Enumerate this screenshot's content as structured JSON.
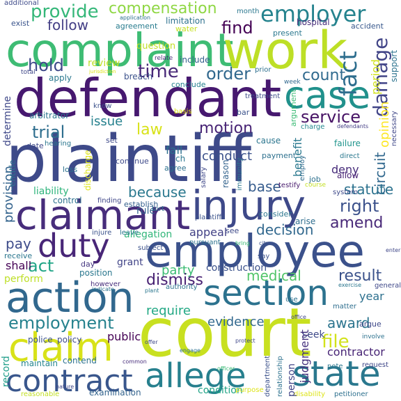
{
  "words": [
    {
      "text": "plaintiff",
      "color": "#3e4a89",
      "rot": 0
    },
    {
      "text": "court",
      "color": "#c8e020",
      "rot": 0
    },
    {
      "text": "employee",
      "color": "#3b518b",
      "rot": 0
    },
    {
      "text": "defendant",
      "color": "#46186f",
      "rot": 0
    },
    {
      "text": "complaint",
      "color": "#3ebc74",
      "rot": 0
    },
    {
      "text": "work",
      "color": "#bddf26",
      "rot": 0
    },
    {
      "text": "claimant",
      "color": "#472d7b",
      "rot": 0
    },
    {
      "text": "injury",
      "color": "#3e4989",
      "rot": 0
    },
    {
      "text": "action",
      "color": "#31688e",
      "rot": 0
    },
    {
      "text": "section",
      "color": "#2c728e",
      "rot": 0
    },
    {
      "text": "claim",
      "color": "#d8e219",
      "rot": 0
    },
    {
      "text": "state",
      "color": "#2a788e",
      "rot": 0
    },
    {
      "text": "contract",
      "color": "#39568c",
      "rot": 0
    },
    {
      "text": "allege",
      "color": "#27808e",
      "rot": 0
    },
    {
      "text": "case",
      "color": "#21918c",
      "rot": 0
    },
    {
      "text": "duty",
      "color": "#482677",
      "rot": 0
    },
    {
      "text": "employer",
      "color": "#25838e",
      "rot": 0
    },
    {
      "text": "fact",
      "color": "#2e6e8e",
      "rot": -90
    },
    {
      "text": "damage",
      "color": "#414487",
      "rot": -90
    },
    {
      "text": "provide",
      "color": "#35b779",
      "rot": 0
    },
    {
      "text": "compensation",
      "color": "#8fd744",
      "rot": 0
    },
    {
      "text": "follow",
      "color": "#433e85",
      "rot": 0
    },
    {
      "text": "find",
      "color": "#440154",
      "rot": 0
    },
    {
      "text": "hold",
      "color": "#3e4989",
      "rot": 0
    },
    {
      "text": "time",
      "color": "#482878",
      "rot": 0
    },
    {
      "text": "review",
      "color": "#bddf26",
      "rot": 0
    },
    {
      "text": "order",
      "color": "#31688e",
      "rot": 0
    },
    {
      "text": "count",
      "color": "#306a8e",
      "rot": 0
    },
    {
      "text": "period",
      "color": "#d0e11c",
      "rot": -90
    },
    {
      "text": "opinion",
      "color": "#fde725",
      "rot": -90
    },
    {
      "text": "law",
      "color": "#d8e219",
      "rot": 0
    },
    {
      "text": "trial",
      "color": "#2e6e8e",
      "rot": 0
    },
    {
      "text": "issue",
      "color": "#26818e",
      "rot": 0
    },
    {
      "text": "motion",
      "color": "#482475",
      "rot": 0
    },
    {
      "text": "service",
      "color": "#471365",
      "rot": 0
    },
    {
      "text": "circuit",
      "color": "#31688e",
      "rot": -90
    },
    {
      "text": "because",
      "color": "#2a788e",
      "rot": 0
    },
    {
      "text": "right",
      "color": "#3b518b",
      "rot": 0
    },
    {
      "text": "amend",
      "color": "#482878",
      "rot": 0
    },
    {
      "text": "decision",
      "color": "#31688e",
      "rot": 0
    },
    {
      "text": "liability",
      "color": "#2fb47c",
      "rot": 0
    },
    {
      "text": "statute",
      "color": "#2c728e",
      "rot": 0
    },
    {
      "text": "base",
      "color": "#365c8d",
      "rot": 0
    },
    {
      "text": "benefit",
      "color": "#2a788e",
      "rot": -90
    },
    {
      "text": "provision",
      "color": "#33638d",
      "rot": -90
    },
    {
      "text": "determine",
      "color": "#3f4889",
      "rot": -90
    },
    {
      "text": "pay",
      "color": "#3e4c8a",
      "rot": 0
    },
    {
      "text": "act",
      "color": "#20a486",
      "rot": 0
    },
    {
      "text": "shall",
      "color": "#440154",
      "rot": 0
    },
    {
      "text": "perform",
      "color": "#bddf26",
      "rot": 0
    },
    {
      "text": "appeal",
      "color": "#424186",
      "rot": 0
    },
    {
      "text": "medical",
      "color": "#52c569",
      "rot": 0
    },
    {
      "text": "result",
      "color": "#3b528b",
      "rot": 0
    },
    {
      "text": "party",
      "color": "#3dbc74",
      "rot": 0
    },
    {
      "text": "dismiss",
      "color": "#482173",
      "rot": 0
    },
    {
      "text": "employment",
      "color": "#26828e",
      "rot": 0
    },
    {
      "text": "require",
      "color": "#22a884",
      "rot": 0
    },
    {
      "text": "evidence",
      "color": "#31688e",
      "rot": 0
    },
    {
      "text": "award",
      "color": "#2b748e",
      "rot": 0
    },
    {
      "text": "file",
      "color": "#d2e21b",
      "rot": 0
    },
    {
      "text": "seek",
      "color": "#3e4989",
      "rot": 0
    },
    {
      "text": "judgment",
      "color": "#46327e",
      "rot": -90
    },
    {
      "text": "contractor",
      "color": "#482576",
      "rot": 0
    },
    {
      "text": "record",
      "color": "#1f9e89",
      "rot": -90
    },
    {
      "text": "conduct",
      "color": "#3b518b",
      "rot": 0
    },
    {
      "text": "public",
      "color": "#440154",
      "rot": 0
    },
    {
      "text": "construction",
      "color": "#3b518b",
      "rot": 0
    },
    {
      "text": "condition",
      "color": "#20a386",
      "rot": 0
    },
    {
      "text": "maintain",
      "color": "#25848e",
      "rot": 0
    },
    {
      "text": "contend",
      "color": "#2c718e",
      "rot": 0
    },
    {
      "text": "examination",
      "color": "#33638d",
      "rot": 0
    },
    {
      "text": "fail",
      "color": "#2d708e",
      "rot": 0
    },
    {
      "text": "rule",
      "color": "#33638d",
      "rot": 0
    },
    {
      "text": "deny",
      "color": "#472c7a",
      "rot": 0
    },
    {
      "text": "year",
      "color": "#2d708e",
      "rot": 0
    },
    {
      "text": "position",
      "color": "#2a778e",
      "rot": 0
    },
    {
      "text": "allegation",
      "color": "#32b67a",
      "rot": 0
    },
    {
      "text": "grant",
      "color": "#414487",
      "rot": 0
    },
    {
      "text": "question",
      "color": "#c2df23",
      "rot": 0
    },
    {
      "text": "include",
      "color": "#34608d",
      "rot": 0
    },
    {
      "text": "breach",
      "color": "#3b518b",
      "rot": 0
    },
    {
      "text": "apply",
      "color": "#2a788e",
      "rot": 0
    },
    {
      "text": "arise",
      "color": "#2e6d8e",
      "rot": 0
    },
    {
      "text": "consider",
      "color": "#2a768e",
      "rot": 0
    },
    {
      "text": "establish",
      "color": "#34608d",
      "rot": 0
    },
    {
      "text": "agreement",
      "color": "#287c8e",
      "rot": 0
    },
    {
      "text": "limitation",
      "color": "#2d718e",
      "rot": 0
    },
    {
      "text": "hospital",
      "color": "#472c7a",
      "rot": 0
    },
    {
      "text": "accident",
      "color": "#38588c",
      "rot": 0
    },
    {
      "text": "present",
      "color": "#2a778e",
      "rot": 0
    },
    {
      "text": "exist",
      "color": "#3a548c",
      "rot": 0
    },
    {
      "text": "water",
      "color": "#c5e021",
      "rot": 0
    },
    {
      "text": "additional",
      "color": "#3e4a89",
      "rot": 0
    },
    {
      "text": "month",
      "color": "#2a778e",
      "rot": 0
    },
    {
      "text": "application",
      "color": "#2c718e",
      "rot": 0
    },
    {
      "text": "conclude",
      "color": "#26828e",
      "rot": 0
    },
    {
      "text": "relate",
      "color": "#472d7b",
      "rot": 0
    },
    {
      "text": "jurisdiction",
      "color": "#dde318",
      "rot": 0
    },
    {
      "text": "prior",
      "color": "#2d708e",
      "rot": 0
    },
    {
      "text": "week",
      "color": "#31688e",
      "rot": 0
    },
    {
      "text": "support",
      "color": "#2c738e",
      "rot": -90
    },
    {
      "text": "argument",
      "color": "#3bbb75",
      "rot": -90
    },
    {
      "text": "necessary",
      "color": "#3f4788",
      "rot": -90
    },
    {
      "text": "treatment",
      "color": "#3e4c8a",
      "rot": 0
    },
    {
      "text": "bar",
      "color": "#3b528b",
      "rot": 0
    },
    {
      "text": "charge",
      "color": "#23888e",
      "rot": 0
    },
    {
      "text": "defendants",
      "color": "#433d84",
      "rot": 0
    },
    {
      "text": "cause",
      "color": "#2b758e",
      "rot": 0
    },
    {
      "text": "failure",
      "color": "#1f948c",
      "rot": 0
    },
    {
      "text": "basis",
      "color": "#dde318",
      "rot": 0
    },
    {
      "text": "salary",
      "color": "#3f4889",
      "rot": -90
    },
    {
      "text": "reason",
      "color": "#33638d",
      "rot": -90
    },
    {
      "text": "immunity",
      "color": "#2a778e",
      "rot": -90
    },
    {
      "text": "payment",
      "color": "#2d708e",
      "rot": 0
    },
    {
      "text": "employ",
      "color": "#2f6c8e",
      "rot": -90
    },
    {
      "text": "direct",
      "color": "#2a788e",
      "rot": 0
    },
    {
      "text": "allow",
      "color": "#482374",
      "rot": 0
    },
    {
      "text": "job",
      "color": "#2d708e",
      "rot": 0
    },
    {
      "text": "testify",
      "color": "#481b6d",
      "rot": 0
    },
    {
      "text": "course",
      "color": "#c2df23",
      "rot": 0
    },
    {
      "text": "system",
      "color": "#3e4989",
      "rot": 0
    },
    {
      "text": "control",
      "color": "#2c718e",
      "rot": 0
    },
    {
      "text": "finding",
      "color": "#3f4788",
      "rot": 0
    },
    {
      "text": "plaintiffs",
      "color": "#3b528b",
      "rot": 0
    },
    {
      "text": "pursuant",
      "color": "#2c728e",
      "rot": 0
    },
    {
      "text": "injure",
      "color": "#3b528b",
      "rot": 0
    },
    {
      "text": "leave",
      "color": "#2a768e",
      "rot": 0
    },
    {
      "text": "subject",
      "color": "#3b518b",
      "rot": 0
    },
    {
      "text": "receive",
      "color": "#2a768e",
      "rot": 0
    },
    {
      "text": "day",
      "color": "#453781",
      "rot": 0
    },
    {
      "text": "authority",
      "color": "#2c718e",
      "rot": 0
    },
    {
      "text": "say",
      "color": "#3b518b",
      "rot": 0
    },
    {
      "text": "general",
      "color": "#3f4889",
      "rot": 0
    },
    {
      "text": "exercise",
      "color": "#2a768e",
      "rot": 0
    },
    {
      "text": "matter",
      "color": "#2e6e8e",
      "rot": 0
    },
    {
      "text": "argue",
      "color": "#3e4989",
      "rot": 0
    },
    {
      "text": "involve",
      "color": "#2c718e",
      "rot": 0
    },
    {
      "text": "police",
      "color": "#3b528b",
      "rot": 0
    },
    {
      "text": "policy",
      "color": "#3e4c8a",
      "rot": 0
    },
    {
      "text": "however",
      "color": "#472d7b",
      "rot": 0
    },
    {
      "text": "indicate",
      "color": "#2c718e",
      "rot": 0
    },
    {
      "text": "note",
      "color": "#2a768e",
      "rot": 0
    },
    {
      "text": "request",
      "color": "#3f4788",
      "rot": 0
    },
    {
      "text": "petitioner",
      "color": "#2d708e",
      "rot": 0
    },
    {
      "text": "reasonable",
      "color": "#c2df23",
      "rot": 0
    },
    {
      "text": "purpose",
      "color": "#dde318",
      "rot": 0
    },
    {
      "text": "disability",
      "color": "#dde318",
      "rot": 0
    },
    {
      "text": "relationship",
      "color": "#2c718e",
      "rot": -90
    },
    {
      "text": "department",
      "color": "#3b518b",
      "rot": -90
    },
    {
      "text": "person",
      "color": "#414487",
      "rot": -90
    },
    {
      "text": "entitle",
      "color": "#2c718e",
      "rot": -90
    },
    {
      "text": "discharge",
      "color": "#dde318",
      "rot": -90
    },
    {
      "text": "arbitrator",
      "color": "#2a768e",
      "rot": 0
    },
    {
      "text": "date",
      "color": "#3e4989",
      "rot": 0
    },
    {
      "text": "hearing",
      "color": "#2a768e",
      "rot": 0
    },
    {
      "text": "set",
      "color": "#3e4989",
      "rot": 0
    },
    {
      "text": "continue",
      "color": "#3e4989",
      "rot": 0
    },
    {
      "text": "loss",
      "color": "#2c718e",
      "rot": 0
    },
    {
      "text": "agree",
      "color": "#2c718e",
      "rot": 0
    },
    {
      "text": "ch",
      "color": "#2a768e",
      "rot": 0
    },
    {
      "text": "total",
      "color": "#3f4788",
      "rot": 0
    },
    {
      "text": "know",
      "color": "#3b528b",
      "rot": 0
    },
    {
      "text": "tort",
      "color": "#2d708e",
      "rot": 0
    },
    {
      "text": "city",
      "color": "#3b518b",
      "rot": 0
    },
    {
      "text": "bring",
      "color": "#3bbb75",
      "rot": 0
    },
    {
      "text": "see",
      "color": "#3e4989",
      "rot": 0
    },
    {
      "text": "enter",
      "color": "#3f4788",
      "rot": 0
    },
    {
      "text": "office",
      "color": "#3f4788",
      "rot": 0
    },
    {
      "text": "use",
      "color": "#2c718e",
      "rot": 0
    },
    {
      "text": "officer",
      "color": "#3bbb75",
      "rot": 0
    },
    {
      "text": "plant",
      "color": "#2a768e",
      "rot": 0
    },
    {
      "text": "protect",
      "color": "#3f4889",
      "rot": 0
    },
    {
      "text": "common",
      "color": "#472d7b",
      "rot": 0
    },
    {
      "text": "engage",
      "color": "#2c718e",
      "rot": 0
    },
    {
      "text": "nature",
      "color": "#3f4788",
      "rot": 0
    },
    {
      "text": "offer",
      "color": "#3e4989",
      "rot": 0
    }
  ]
}
